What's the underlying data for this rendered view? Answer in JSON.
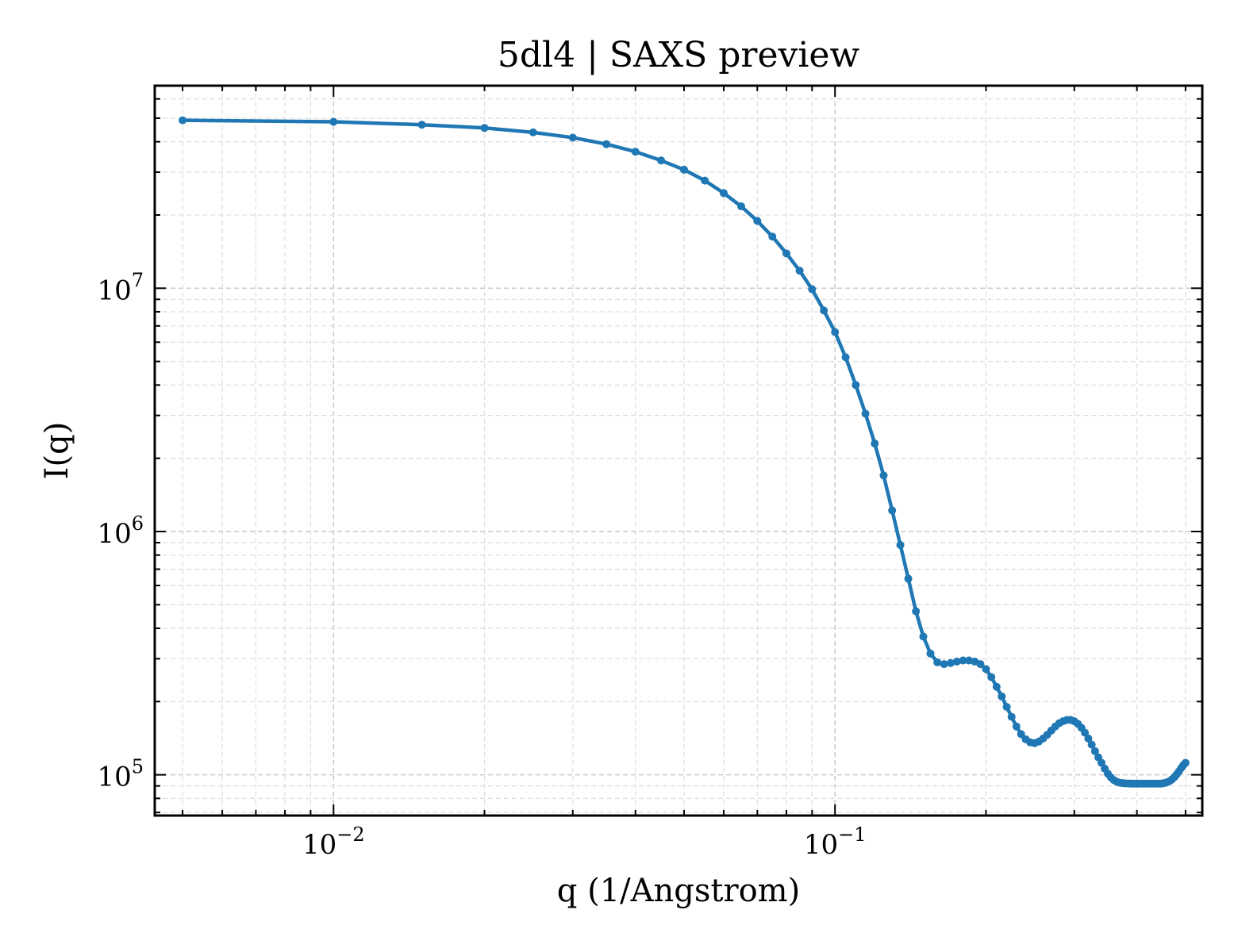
{
  "chart_data": {
    "type": "line",
    "title": "5dl4 | SAXS preview",
    "xlabel": "q (1/Angstrom)",
    "ylabel": "I(q)",
    "xscale": "log",
    "yscale": "log",
    "xlim": [
      0.0044,
      0.54
    ],
    "ylim": [
      68000,
      68000000
    ],
    "grid": true,
    "legend": false,
    "series_color": "#1f77b4",
    "x_ticks": [
      {
        "value": 0.01,
        "base": "10",
        "exp": "−2"
      },
      {
        "value": 0.1,
        "base": "10",
        "exp": "−1"
      }
    ],
    "y_ticks": [
      {
        "value": 100000,
        "base": "10",
        "exp": "5"
      },
      {
        "value": 1000000,
        "base": "10",
        "exp": "6"
      },
      {
        "value": 10000000,
        "base": "10",
        "exp": "7"
      }
    ],
    "series": [
      {
        "x": [
          0.005,
          0.01,
          0.015,
          0.02,
          0.025,
          0.03,
          0.035,
          0.04,
          0.045,
          0.05,
          0.055,
          0.06,
          0.065,
          0.07,
          0.075,
          0.08,
          0.085,
          0.09,
          0.095,
          0.1,
          0.105,
          0.11,
          0.115,
          0.12,
          0.125,
          0.13,
          0.135,
          0.14,
          0.145,
          0.15,
          0.155,
          0.16,
          0.165,
          0.17,
          0.175,
          0.18,
          0.185,
          0.19,
          0.195,
          0.2,
          0.205,
          0.21,
          0.215,
          0.22,
          0.225,
          0.23,
          0.235,
          0.24,
          0.245,
          0.25,
          0.255,
          0.26,
          0.265,
          0.27,
          0.275,
          0.28,
          0.285,
          0.29,
          0.295,
          0.3,
          0.305,
          0.31,
          0.315,
          0.32,
          0.325,
          0.33,
          0.335,
          0.34,
          0.345,
          0.35,
          0.355,
          0.36,
          0.365,
          0.37,
          0.375,
          0.38,
          0.385,
          0.39,
          0.395,
          0.4,
          0.405,
          0.41,
          0.415,
          0.42,
          0.425,
          0.43,
          0.435,
          0.44,
          0.445,
          0.45,
          0.455,
          0.46,
          0.465,
          0.47,
          0.475,
          0.48,
          0.485,
          0.49,
          0.495,
          0.5
        ],
        "y": [
          49000000,
          48300000,
          47000000,
          45600000,
          43700000,
          41600000,
          39100000,
          36400000,
          33500000,
          30700000,
          27700000,
          24600000,
          21700000,
          18900000,
          16300000,
          13900000,
          11800000,
          9900000,
          8100000,
          6600000,
          5200000,
          4000000,
          3050000,
          2300000,
          1700000,
          1220000,
          880000,
          640000,
          470000,
          370000,
          315000,
          290000,
          285000,
          288000,
          292000,
          295000,
          295000,
          292000,
          285000,
          272000,
          252000,
          230000,
          210000,
          190000,
          173000,
          158000,
          147000,
          140000,
          136000,
          135000,
          137000,
          141000,
          146000,
          152000,
          158000,
          163000,
          166000,
          168000,
          168000,
          166000,
          162000,
          156000,
          149000,
          141000,
          133000,
          125000,
          118000,
          112000,
          106000,
          101000,
          97500,
          95000,
          93500,
          92800,
          92400,
          92200,
          92100,
          92000,
          92000,
          92000,
          92000,
          92000,
          92000,
          92000,
          92000,
          92000,
          92000,
          92000,
          92000,
          92200,
          92600,
          93300,
          94300,
          95800,
          97800,
          100300,
          103200,
          106500,
          109500,
          112000
        ]
      }
    ]
  }
}
